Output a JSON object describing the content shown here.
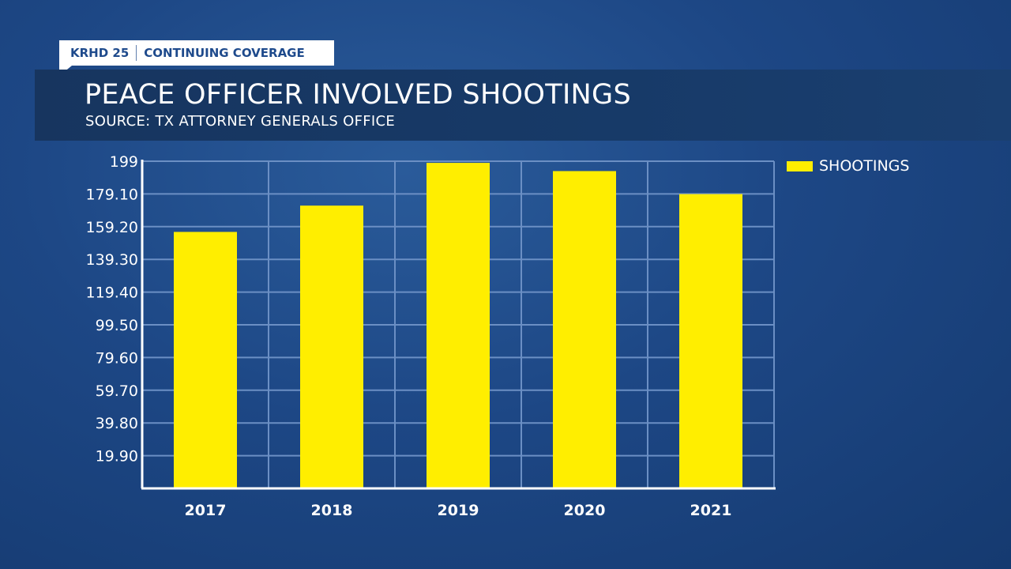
{
  "header": {
    "station": "KRHD 25",
    "segment": "CONTINUING COVERAGE",
    "title": "PEACE OFFICER INVOLVED SHOOTINGS",
    "subtitle": "SOURCE: TX ATTORNEY GENERALS OFFICE"
  },
  "colors": {
    "bar": "#ffee00",
    "grid": "#6b8fc4",
    "axis": "#ffffff",
    "banner": "#17355f"
  },
  "chart_data": {
    "type": "bar",
    "categories": [
      "2017",
      "2018",
      "2019",
      "2020",
      "2021"
    ],
    "series": [
      {
        "name": "SHOOTINGS",
        "values": [
          156,
          172,
          198,
          193,
          179
        ]
      }
    ],
    "yticks": [
      "19.90",
      "39.80",
      "59.70",
      "79.60",
      "99.50",
      "119.40",
      "139.30",
      "159.20",
      "179.10",
      "199"
    ],
    "ylim": [
      0,
      199
    ],
    "grid": true,
    "legend": "top-right"
  }
}
